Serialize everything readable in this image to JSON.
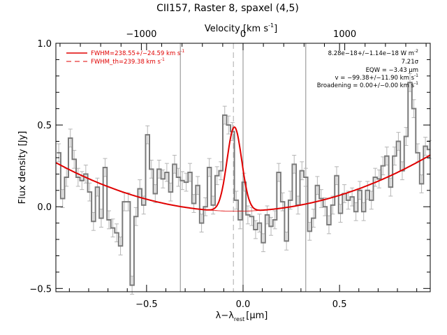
{
  "chart_data": {
    "type": "line",
    "title": "CII157, Raster 8, spaxel (4,5)",
    "xlabel": "λ−λ",
    "xlabel_sub": "rest",
    "xlabel_unit": "[μm]",
    "ylabel": "Flux density [Jy]",
    "top_axis_label": "Velocity [km s",
    "top_axis_label_sup": "-1",
    "top_axis_label_close": "]",
    "xlim": [
      -0.97,
      0.97
    ],
    "ylim": [
      -0.52,
      1.0
    ],
    "x_ticks": [
      -0.5,
      0.0,
      0.5
    ],
    "x_tick_labels": [
      "−0.5",
      "0.0",
      "0.5"
    ],
    "y_ticks": [
      -0.5,
      0.0,
      0.5,
      1.0
    ],
    "y_tick_labels": [
      "−0.5",
      "0.0",
      "0.5",
      "1.0"
    ],
    "top_ticks_um": [
      -0.527,
      0.0,
      0.527
    ],
    "top_tick_labels": [
      "−1000",
      "0",
      "1000"
    ],
    "vertical_lines_solid": [
      -0.325,
      0.0,
      0.325
    ],
    "vertical_line_dashed": -0.05,
    "legend": {
      "placement": "top-left",
      "items": [
        {
          "label": "FWHM=238.55+/−24.59 km s",
          "sup": "-1",
          "style": "solid",
          "color": "#e00000"
        },
        {
          "label": "FWHM_th=239.38 km s",
          "sup": "-1",
          "style": "dashed",
          "color": "#e00000"
        }
      ]
    },
    "annotations": {
      "placement": "top-right",
      "lines": [
        {
          "text": "8.28e−18+/−1.14e−18 W m",
          "sup": "-2"
        },
        {
          "text": "7.21σ",
          "sup": ""
        },
        {
          "text": "EQW = −3.43 μm",
          "sup": ""
        },
        {
          "text": "v = −99.38+/−11.90 km s",
          "sup": "-1"
        },
        {
          "text": "Broadening = 0.00+/−0.00 km s",
          "sup": "-1"
        }
      ]
    },
    "series": [
      {
        "name": "spectrum",
        "style": "step",
        "color": "#808080",
        "x": [
          -0.955,
          -0.935,
          -0.915,
          -0.895,
          -0.875,
          -0.855,
          -0.835,
          -0.815,
          -0.795,
          -0.775,
          -0.755,
          -0.735,
          -0.715,
          -0.695,
          -0.675,
          -0.655,
          -0.635,
          -0.615,
          -0.595,
          -0.575,
          -0.555,
          -0.535,
          -0.515,
          -0.495,
          -0.475,
          -0.455,
          -0.435,
          -0.415,
          -0.395,
          -0.375,
          -0.355,
          -0.335,
          -0.315,
          -0.295,
          -0.275,
          -0.255,
          -0.235,
          -0.215,
          -0.195,
          -0.175,
          -0.155,
          -0.135,
          -0.115,
          -0.095,
          -0.075,
          -0.055,
          -0.035,
          -0.015,
          0.005,
          0.025,
          0.045,
          0.065,
          0.085,
          0.105,
          0.125,
          0.145,
          0.165,
          0.185,
          0.205,
          0.225,
          0.245,
          0.265,
          0.285,
          0.305,
          0.325,
          0.345,
          0.365,
          0.385,
          0.405,
          0.425,
          0.445,
          0.465,
          0.485,
          0.505,
          0.525,
          0.545,
          0.565,
          0.585,
          0.605,
          0.625,
          0.645,
          0.665,
          0.685,
          0.705,
          0.725,
          0.745,
          0.765,
          0.785,
          0.805,
          0.825,
          0.845,
          0.865,
          0.885,
          0.905,
          0.925,
          0.945,
          0.965
        ],
        "y": [
          0.33,
          0.05,
          0.18,
          0.42,
          0.29,
          0.18,
          0.16,
          0.2,
          0.09,
          -0.09,
          0.12,
          -0.07,
          0.24,
          -0.08,
          -0.13,
          -0.16,
          -0.24,
          0.03,
          0.03,
          -0.48,
          -0.06,
          0.11,
          0.01,
          0.44,
          0.23,
          0.08,
          0.23,
          0.17,
          0.21,
          0.09,
          0.26,
          0.18,
          0.16,
          0.15,
          0.21,
          0.02,
          0.13,
          -0.1,
          0.0,
          0.24,
          0.01,
          0.19,
          0.22,
          0.56,
          0.5,
          0.46,
          0.04,
          -0.08,
          0.15,
          -0.05,
          -0.06,
          -0.14,
          -0.1,
          -0.22,
          -0.05,
          -0.12,
          -0.08,
          0.21,
          0.03,
          -0.21,
          0.04,
          0.26,
          0.01,
          0.22,
          0.18,
          -0.15,
          -0.07,
          0.13,
          0.05,
          0.0,
          -0.11,
          0.01,
          0.19,
          -0.04,
          0.08,
          0.04,
          0.06,
          -0.03,
          0.1,
          -0.03,
          0.1,
          0.04,
          0.18,
          0.17,
          0.25,
          0.31,
          0.12,
          0.31,
          0.4,
          0.22,
          0.43,
          0.76,
          0.6,
          0.33,
          0.14,
          0.37,
          0.35
        ]
      },
      {
        "name": "model",
        "style": "line",
        "color": "#e00000",
        "continuum_coeffs": [
          -0.027,
          0.024,
          0.34
        ],
        "peak_center": -0.045,
        "peak_amplitude": 0.515,
        "peak_sigma": 0.038
      }
    ]
  }
}
